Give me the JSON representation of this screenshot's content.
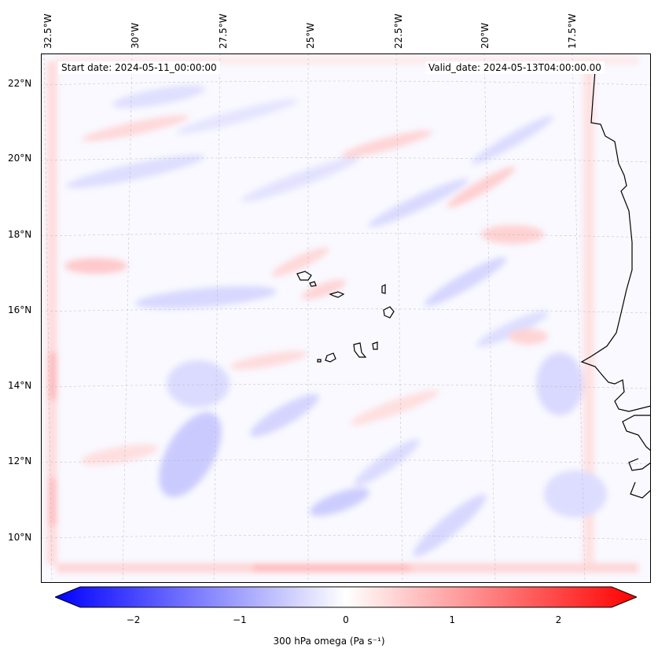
{
  "header": {
    "start_date": "Start date: 2024-05-11_00:00:00",
    "valid_date": "Valid_date: 2024-05-13T04:00:00.00"
  },
  "axes": {
    "lon_labels": [
      "32.5°W",
      "30°W",
      "27.5°W",
      "25°W",
      "22.5°W",
      "20°W",
      "17.5°W"
    ],
    "lat_labels": [
      "22°N",
      "20°N",
      "18°N",
      "16°N",
      "14°N",
      "12°N",
      "10°N"
    ]
  },
  "colorbar": {
    "ticks": [
      "−2",
      "−1",
      "0",
      "1",
      "2"
    ],
    "tick_values": [
      -2,
      -1,
      0,
      1,
      2
    ],
    "range": [
      -2.75,
      2.75
    ],
    "label": "300 hPa omega (Pa s⁻¹)",
    "cmap_low": "#0000ff",
    "cmap_mid": "#ffffff",
    "cmap_high": "#ff0000"
  }
}
